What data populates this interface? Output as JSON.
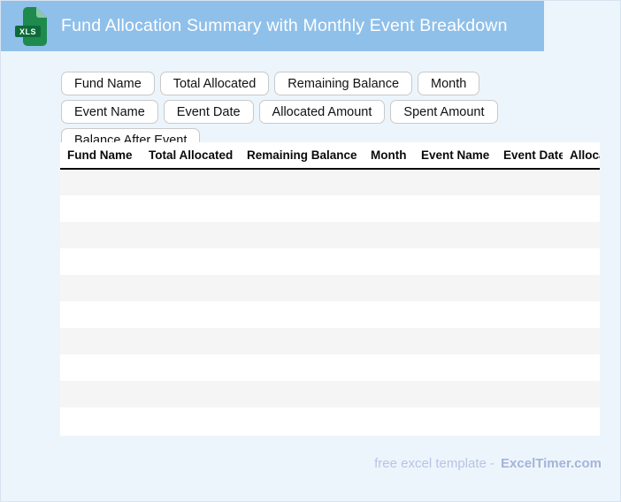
{
  "header": {
    "title": "Fund Allocation Summary with Monthly Event Breakdown",
    "file_badge": "XLS"
  },
  "chips": [
    "Fund Name",
    "Total Allocated",
    "Remaining Balance",
    "Month",
    "Event Name",
    "Event Date",
    "Allocated Amount",
    "Spent Amount",
    "Balance After Event"
  ],
  "table": {
    "columns": [
      "Fund Name",
      "Total Allocated",
      "Remaining Balance",
      "Month",
      "Event Name",
      "Event Date",
      "Allocated Amount"
    ],
    "row_count": 10,
    "rows": []
  },
  "footer": {
    "text": "free excel template -",
    "brand": "ExcelTimer.com"
  },
  "colors": {
    "banner": "#8fc0ea",
    "page_bg": "#edf5fc",
    "page_border": "#d7e3f0",
    "chip_border": "#c9c9c9",
    "stripe": "#f5f5f5",
    "icon_green": "#1e8a4d",
    "icon_green_dark": "#0d6b3a",
    "icon_fold": "#8cc7a5",
    "footer_text": "#b7c4e6",
    "footer_brand": "#a4b4d9"
  }
}
